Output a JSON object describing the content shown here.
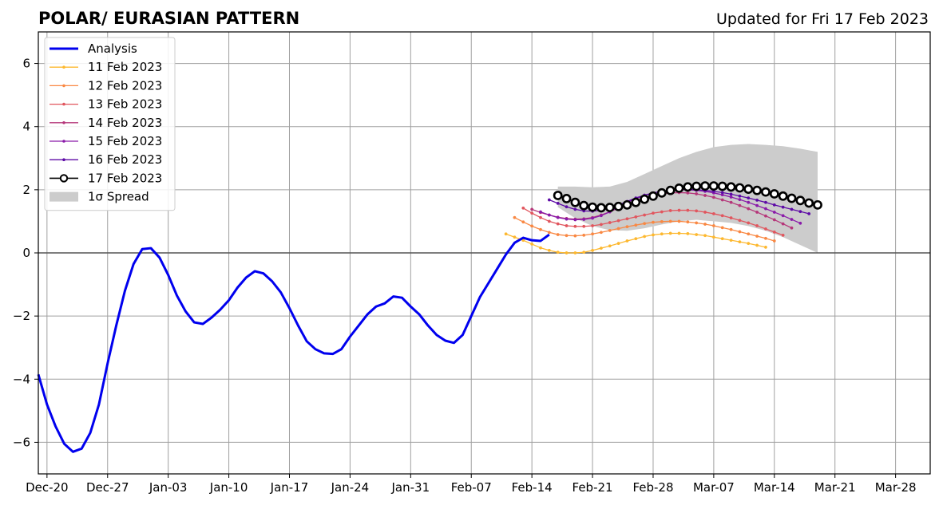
{
  "title": "POLAR/ EURASIAN  PATTERN",
  "updated": "Updated for Fri 17 Feb 2023",
  "chart_data": {
    "type": "line",
    "title": "POLAR/ EURASIAN  PATTERN",
    "x_unit": "date",
    "xlim": [
      "2022-12-19",
      "2023-04-01"
    ],
    "ylim": [
      -7,
      7
    ],
    "x_ticks": [
      "Dec-20",
      "Dec-27",
      "Jan-03",
      "Jan-10",
      "Jan-17",
      "Jan-24",
      "Jan-31",
      "Feb-07",
      "Feb-14",
      "Feb-21",
      "Feb-28",
      "Mar-07",
      "Mar-14",
      "Mar-21",
      "Mar-28"
    ],
    "x_tick_dates": [
      "2022-12-20",
      "2022-12-27",
      "2023-01-03",
      "2023-01-10",
      "2023-01-17",
      "2023-01-24",
      "2023-01-31",
      "2023-02-07",
      "2023-02-14",
      "2023-02-21",
      "2023-02-28",
      "2023-03-07",
      "2023-03-14",
      "2023-03-21",
      "2023-03-28"
    ],
    "y_ticks": [
      -6,
      -4,
      -2,
      0,
      2,
      4,
      6
    ],
    "y_tick_labels": [
      "−6",
      "−4",
      "−2",
      "0",
      "2",
      "4",
      "6"
    ],
    "grid": true,
    "zero_line": true,
    "legend_position": "upper-left",
    "analysis": {
      "name": "Analysis",
      "color": "#0000ee",
      "x": [
        "2022-12-19",
        "2022-12-20",
        "2022-12-21",
        "2022-12-22",
        "2022-12-23",
        "2022-12-24",
        "2022-12-25",
        "2022-12-26",
        "2022-12-27",
        "2022-12-28",
        "2022-12-29",
        "2022-12-30",
        "2022-12-31",
        "2023-01-01",
        "2023-01-02",
        "2023-01-03",
        "2023-01-04",
        "2023-01-05",
        "2023-01-06",
        "2023-01-07",
        "2023-01-08",
        "2023-01-09",
        "2023-01-10",
        "2023-01-11",
        "2023-01-12",
        "2023-01-13",
        "2023-01-14",
        "2023-01-15",
        "2023-01-16",
        "2023-01-17",
        "2023-01-18",
        "2023-01-19",
        "2023-01-20",
        "2023-01-21",
        "2023-01-22",
        "2023-01-23",
        "2023-01-24",
        "2023-01-25",
        "2023-01-26",
        "2023-01-27",
        "2023-01-28",
        "2023-01-29",
        "2023-01-30",
        "2023-01-31",
        "2023-02-01",
        "2023-02-02",
        "2023-02-03",
        "2023-02-04",
        "2023-02-05",
        "2023-02-06",
        "2023-02-07",
        "2023-02-08",
        "2023-02-09",
        "2023-02-10",
        "2023-02-11",
        "2023-02-12",
        "2023-02-13",
        "2023-02-14",
        "2023-02-15",
        "2023-02-16"
      ],
      "y": [
        -3.85,
        -4.8,
        -5.5,
        -6.05,
        -6.3,
        -6.2,
        -5.7,
        -4.8,
        -3.5,
        -2.3,
        -1.2,
        -0.35,
        0.12,
        0.15,
        -0.15,
        -0.7,
        -1.35,
        -1.85,
        -2.2,
        -2.25,
        -2.05,
        -1.8,
        -1.5,
        -1.1,
        -0.78,
        -0.58,
        -0.65,
        -0.9,
        -1.25,
        -1.75,
        -2.3,
        -2.8,
        -3.05,
        -3.18,
        -3.2,
        -3.05,
        -2.65,
        -2.3,
        -1.95,
        -1.7,
        -1.6,
        -1.38,
        -1.42,
        -1.7,
        -1.95,
        -2.3,
        -2.6,
        -2.78,
        -2.85,
        -2.6,
        -2.0,
        -1.4,
        -0.95,
        -0.5,
        -0.05,
        0.32,
        0.48,
        0.4,
        0.38,
        0.58
      ]
    },
    "spread": {
      "name": "1σ Spread",
      "color": "#cccccc",
      "x": [
        "2023-02-17",
        "2023-02-19",
        "2023-02-21",
        "2023-02-23",
        "2023-02-25",
        "2023-02-27",
        "2023-03-01",
        "2023-03-03",
        "2023-03-05",
        "2023-03-07",
        "2023-03-09",
        "2023-03-11",
        "2023-03-13",
        "2023-03-15",
        "2023-03-17",
        "2023-03-19"
      ],
      "lower": [
        1.45,
        1.1,
        0.85,
        0.72,
        0.7,
        0.78,
        0.9,
        1.0,
        1.05,
        1.0,
        0.95,
        0.85,
        0.7,
        0.5,
        0.25,
        0.0
      ],
      "upper": [
        2.1,
        2.1,
        2.08,
        2.1,
        2.25,
        2.5,
        2.75,
        3.0,
        3.2,
        3.35,
        3.42,
        3.45,
        3.42,
        3.38,
        3.3,
        3.2
      ]
    },
    "series": [
      {
        "name": "11 Feb 2023",
        "color": "#fdb82f",
        "x": [
          "2023-02-11",
          "2023-02-12",
          "2023-02-13",
          "2023-02-14",
          "2023-02-15",
          "2023-02-16",
          "2023-02-17",
          "2023-02-18",
          "2023-02-19",
          "2023-02-20",
          "2023-02-21",
          "2023-02-22",
          "2023-02-23",
          "2023-02-24",
          "2023-02-25",
          "2023-02-26",
          "2023-02-27",
          "2023-02-28",
          "2023-03-01",
          "2023-03-02",
          "2023-03-03",
          "2023-03-04",
          "2023-03-05",
          "2023-03-06",
          "2023-03-07",
          "2023-03-08",
          "2023-03-09",
          "2023-03-10",
          "2023-03-11",
          "2023-03-12",
          "2023-03-13"
        ],
        "y": [
          0.6,
          0.5,
          0.4,
          0.28,
          0.16,
          0.08,
          0.02,
          0.0,
          0.0,
          0.02,
          0.08,
          0.15,
          0.22,
          0.3,
          0.38,
          0.45,
          0.52,
          0.57,
          0.6,
          0.62,
          0.62,
          0.61,
          0.58,
          0.55,
          0.5,
          0.45,
          0.4,
          0.35,
          0.3,
          0.24,
          0.18
        ]
      },
      {
        "name": "12 Feb 2023",
        "color": "#f98843",
        "x": [
          "2023-02-12",
          "2023-02-13",
          "2023-02-14",
          "2023-02-15",
          "2023-02-16",
          "2023-02-17",
          "2023-02-18",
          "2023-02-19",
          "2023-02-20",
          "2023-02-21",
          "2023-02-22",
          "2023-02-23",
          "2023-02-24",
          "2023-02-25",
          "2023-02-26",
          "2023-02-27",
          "2023-02-28",
          "2023-03-01",
          "2023-03-02",
          "2023-03-03",
          "2023-03-04",
          "2023-03-05",
          "2023-03-06",
          "2023-03-07",
          "2023-03-08",
          "2023-03-09",
          "2023-03-10",
          "2023-03-11",
          "2023-03-12",
          "2023-03-13",
          "2023-03-14"
        ],
        "y": [
          1.12,
          0.98,
          0.85,
          0.74,
          0.65,
          0.58,
          0.55,
          0.54,
          0.56,
          0.6,
          0.65,
          0.71,
          0.77,
          0.83,
          0.88,
          0.93,
          0.97,
          0.99,
          1.0,
          1.0,
          0.98,
          0.95,
          0.91,
          0.86,
          0.8,
          0.74,
          0.67,
          0.6,
          0.53,
          0.46,
          0.38
        ]
      },
      {
        "name": "13 Feb 2023",
        "color": "#e1565e",
        "x": [
          "2023-02-13",
          "2023-02-14",
          "2023-02-15",
          "2023-02-16",
          "2023-02-17",
          "2023-02-18",
          "2023-02-19",
          "2023-02-20",
          "2023-02-21",
          "2023-02-22",
          "2023-02-23",
          "2023-02-24",
          "2023-02-25",
          "2023-02-26",
          "2023-02-27",
          "2023-02-28",
          "2023-03-01",
          "2023-03-02",
          "2023-03-03",
          "2023-03-04",
          "2023-03-05",
          "2023-03-06",
          "2023-03-07",
          "2023-03-08",
          "2023-03-09",
          "2023-03-10",
          "2023-03-11",
          "2023-03-12",
          "2023-03-13",
          "2023-03-14",
          "2023-03-15"
        ],
        "y": [
          1.42,
          1.26,
          1.12,
          1.0,
          0.92,
          0.86,
          0.84,
          0.84,
          0.86,
          0.9,
          0.96,
          1.02,
          1.08,
          1.14,
          1.2,
          1.26,
          1.3,
          1.34,
          1.35,
          1.35,
          1.33,
          1.29,
          1.24,
          1.18,
          1.11,
          1.03,
          0.95,
          0.86,
          0.76,
          0.66,
          0.56
        ]
      },
      {
        "name": "14 Feb 2023",
        "color": "#b5367a",
        "x": [
          "2023-02-14",
          "2023-02-15",
          "2023-02-16",
          "2023-02-17",
          "2023-02-18",
          "2023-02-19",
          "2023-02-20",
          "2023-02-21",
          "2023-02-22",
          "2023-02-23",
          "2023-02-24",
          "2023-02-25",
          "2023-02-26",
          "2023-02-27",
          "2023-02-28",
          "2023-03-01",
          "2023-03-02",
          "2023-03-03",
          "2023-03-04",
          "2023-03-05",
          "2023-03-06",
          "2023-03-07",
          "2023-03-08",
          "2023-03-09",
          "2023-03-10",
          "2023-03-11",
          "2023-03-12",
          "2023-03-13",
          "2023-03-14",
          "2023-03-15",
          "2023-03-16"
        ],
        "y": [
          1.38,
          1.28,
          1.2,
          1.13,
          1.09,
          1.07,
          1.08,
          1.12,
          1.2,
          1.3,
          1.42,
          1.54,
          1.65,
          1.74,
          1.82,
          1.87,
          1.9,
          1.91,
          1.9,
          1.87,
          1.82,
          1.76,
          1.68,
          1.6,
          1.5,
          1.4,
          1.29,
          1.17,
          1.05,
          0.92,
          0.79
        ]
      },
      {
        "name": "15 Feb 2023",
        "color": "#8a1aa9",
        "x": [
          "2023-02-15",
          "2023-02-16",
          "2023-02-17",
          "2023-02-18",
          "2023-02-19",
          "2023-02-20",
          "2023-02-21",
          "2023-02-22",
          "2023-02-23",
          "2023-02-24",
          "2023-02-25",
          "2023-02-26",
          "2023-02-27",
          "2023-02-28",
          "2023-03-01",
          "2023-03-02",
          "2023-03-03",
          "2023-03-04",
          "2023-03-05",
          "2023-03-06",
          "2023-03-07",
          "2023-03-08",
          "2023-03-09",
          "2023-03-10",
          "2023-03-11",
          "2023-03-12",
          "2023-03-13",
          "2023-03-14",
          "2023-03-15",
          "2023-03-16",
          "2023-03-17"
        ],
        "y": [
          1.3,
          1.2,
          1.12,
          1.07,
          1.05,
          1.06,
          1.1,
          1.18,
          1.3,
          1.45,
          1.6,
          1.72,
          1.82,
          1.9,
          1.95,
          1.98,
          2.0,
          2.0,
          1.98,
          1.95,
          1.9,
          1.84,
          1.77,
          1.69,
          1.6,
          1.5,
          1.4,
          1.29,
          1.18,
          1.06,
          0.94
        ]
      },
      {
        "name": "16 Feb 2023",
        "color": "#5d0aa6",
        "x": [
          "2023-02-16",
          "2023-02-17",
          "2023-02-18",
          "2023-02-19",
          "2023-02-20",
          "2023-02-21",
          "2023-02-22",
          "2023-02-23",
          "2023-02-24",
          "2023-02-25",
          "2023-02-26",
          "2023-02-27",
          "2023-02-28",
          "2023-03-01",
          "2023-03-02",
          "2023-03-03",
          "2023-03-04",
          "2023-03-05",
          "2023-03-06",
          "2023-03-07",
          "2023-03-08",
          "2023-03-09",
          "2023-03-10",
          "2023-03-11",
          "2023-03-12",
          "2023-03-13",
          "2023-03-14",
          "2023-03-15",
          "2023-03-16",
          "2023-03-17",
          "2023-03-18"
        ],
        "y": [
          1.68,
          1.57,
          1.46,
          1.38,
          1.33,
          1.32,
          1.35,
          1.42,
          1.52,
          1.63,
          1.74,
          1.83,
          1.9,
          1.95,
          1.98,
          2.0,
          2.01,
          2.0,
          1.98,
          1.95,
          1.91,
          1.86,
          1.8,
          1.74,
          1.67,
          1.6,
          1.52,
          1.45,
          1.38,
          1.31,
          1.24
        ]
      },
      {
        "name": "17 Feb 2023",
        "color": "#000000",
        "marker": "open-circle",
        "x": [
          "2023-02-17",
          "2023-02-18",
          "2023-02-19",
          "2023-02-20",
          "2023-02-21",
          "2023-02-22",
          "2023-02-23",
          "2023-02-24",
          "2023-02-25",
          "2023-02-26",
          "2023-02-27",
          "2023-02-28",
          "2023-03-01",
          "2023-03-02",
          "2023-03-03",
          "2023-03-04",
          "2023-03-05",
          "2023-03-06",
          "2023-03-07",
          "2023-03-08",
          "2023-03-09",
          "2023-03-10",
          "2023-03-11",
          "2023-03-12",
          "2023-03-13",
          "2023-03-14",
          "2023-03-15",
          "2023-03-16",
          "2023-03-17",
          "2023-03-18",
          "2023-03-19"
        ],
        "y": [
          1.82,
          1.72,
          1.6,
          1.5,
          1.45,
          1.43,
          1.44,
          1.47,
          1.52,
          1.6,
          1.7,
          1.8,
          1.9,
          1.98,
          2.05,
          2.09,
          2.11,
          2.12,
          2.12,
          2.11,
          2.09,
          2.06,
          2.02,
          1.98,
          1.93,
          1.87,
          1.8,
          1.73,
          1.66,
          1.58,
          1.52
        ]
      }
    ]
  }
}
